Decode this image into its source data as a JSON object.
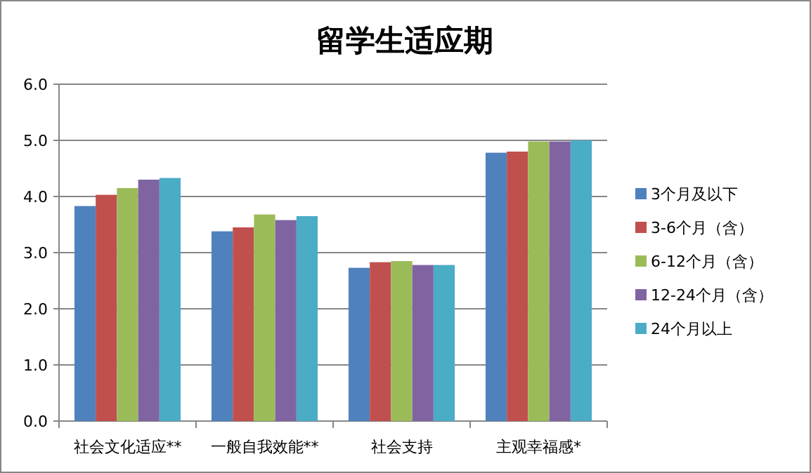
{
  "chart_data": {
    "type": "bar",
    "title": "留学生适应期",
    "categories": [
      "社会文化适应**",
      "一般自我效能**",
      "社会支持",
      "主观幸福感*"
    ],
    "series": [
      {
        "name": "3个月及以下",
        "color": "#4f81bd",
        "values": [
          3.83,
          3.38,
          2.73,
          4.78
        ]
      },
      {
        "name": "3-6个月（含）",
        "color": "#c0504d",
        "values": [
          4.03,
          3.45,
          2.83,
          4.8
        ]
      },
      {
        "name": "6-12个月（含）",
        "color": "#9bbb59",
        "values": [
          4.15,
          3.68,
          2.85,
          4.98
        ]
      },
      {
        "name": "12-24个月（含）",
        "color": "#8064a2",
        "values": [
          4.3,
          3.58,
          2.78,
          4.98
        ]
      },
      {
        "name": "24个月以上",
        "color": "#4bacc6",
        "values": [
          4.33,
          3.65,
          2.78,
          5.0
        ]
      }
    ],
    "ylim": [
      0,
      6
    ],
    "yticks": [
      {
        "value": 0,
        "label": "0.0"
      },
      {
        "value": 1,
        "label": "1.0"
      },
      {
        "value": 2,
        "label": "2.0"
      },
      {
        "value": 3,
        "label": "3.0"
      },
      {
        "value": 4,
        "label": "4.0"
      },
      {
        "value": 5,
        "label": "5.0"
      },
      {
        "value": 6,
        "label": "6.0"
      }
    ],
    "grid": "y",
    "legend": "right"
  }
}
